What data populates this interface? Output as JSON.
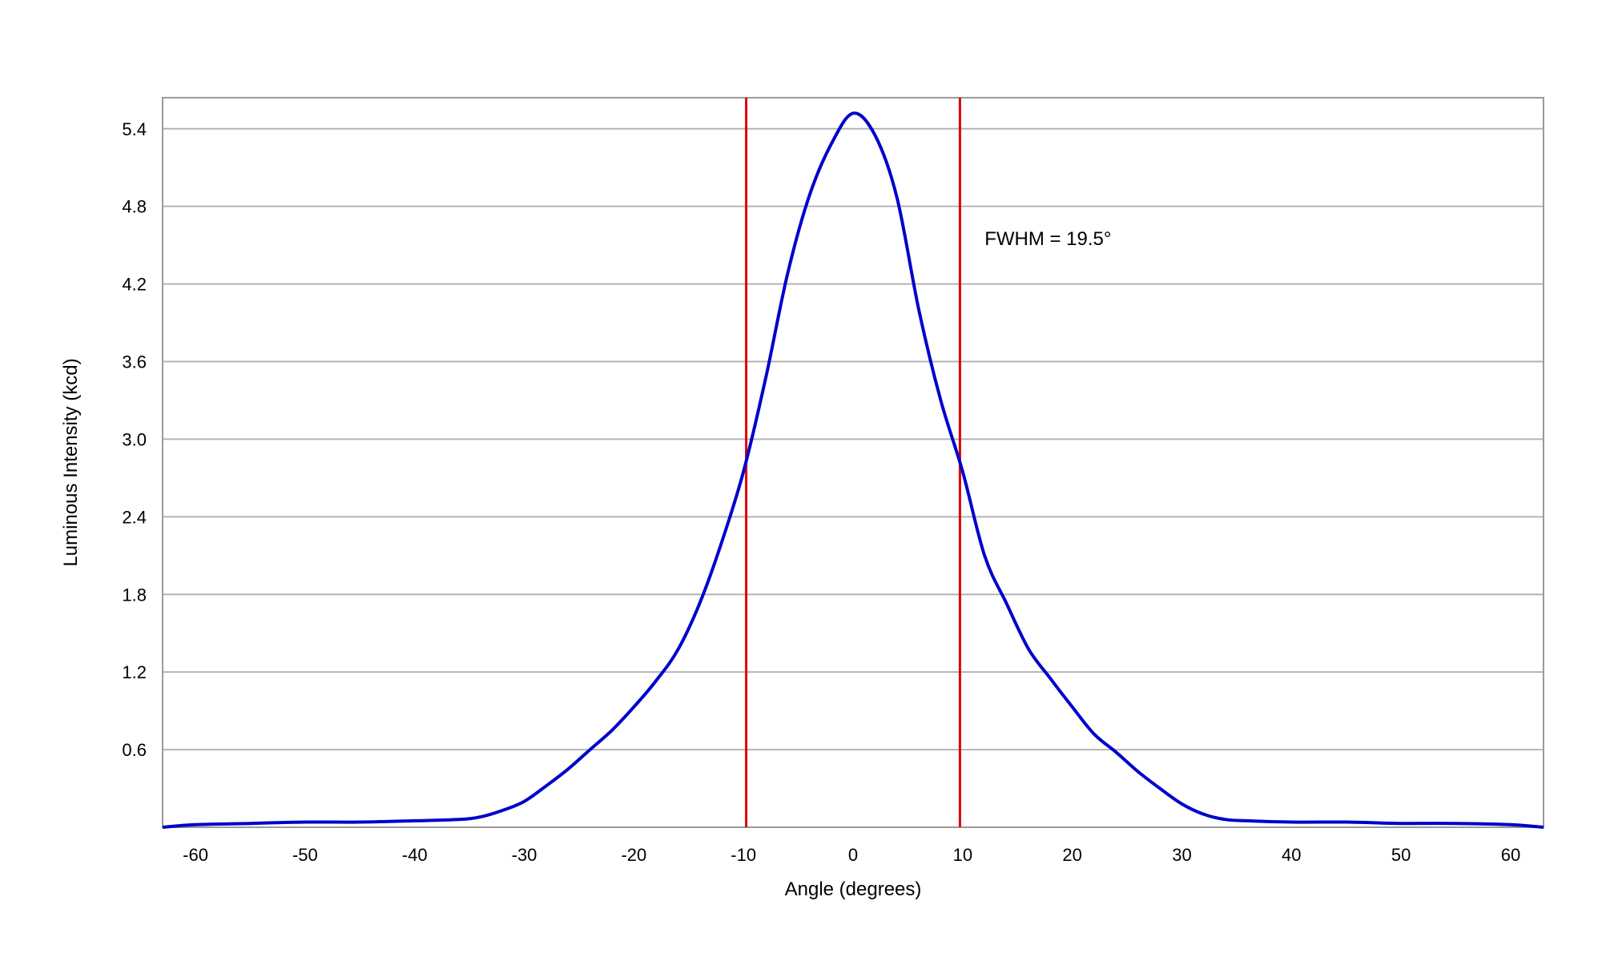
{
  "chart_data": {
    "type": "line",
    "title": "",
    "xlabel": "Angle (degrees)",
    "ylabel": "Luminous Intensity (kcd)",
    "xlim": [
      -63,
      63
    ],
    "ylim": [
      0,
      5.64
    ],
    "xticks": [
      -60,
      -50,
      -40,
      -30,
      -20,
      -10,
      0,
      10,
      20,
      30,
      40,
      50,
      60
    ],
    "xtick_labels": [
      "-60",
      "-50",
      "-40",
      "-30",
      "-20",
      "-10",
      "0",
      "10",
      "20",
      "30",
      "40",
      "50",
      "60"
    ],
    "yticks": [
      0.6,
      1.2,
      1.8,
      2.4,
      3.0,
      3.6,
      4.2,
      4.8,
      5.4
    ],
    "ytick_labels": [
      "0.6",
      "1.2",
      "1.8",
      "2.4",
      "3.0",
      "3.6",
      "4.2",
      "4.8",
      "5.4"
    ],
    "grid": {
      "horizontal": true,
      "vertical": false
    },
    "series": [
      {
        "color": "#0000cc",
        "x": [
          -63,
          -60,
          -55,
          -50,
          -45,
          -40,
          -36,
          -34,
          -32,
          -30,
          -28,
          -26,
          -24,
          -22,
          -20,
          -18,
          -16,
          -14,
          -12,
          -10,
          -8,
          -6,
          -4,
          -2,
          0,
          2,
          4,
          6,
          8,
          10,
          12,
          14,
          16,
          18,
          20,
          22,
          24,
          26,
          28,
          30,
          32,
          34,
          36,
          40,
          45,
          50,
          55,
          60,
          63
        ],
        "y": [
          0.0,
          0.02,
          0.03,
          0.04,
          0.04,
          0.05,
          0.06,
          0.08,
          0.13,
          0.2,
          0.32,
          0.45,
          0.6,
          0.75,
          0.93,
          1.13,
          1.37,
          1.73,
          2.2,
          2.75,
          3.46,
          4.27,
          4.88,
          5.28,
          5.52,
          5.35,
          4.87,
          4.0,
          3.3,
          2.75,
          2.1,
          1.73,
          1.38,
          1.15,
          0.93,
          0.72,
          0.58,
          0.43,
          0.3,
          0.18,
          0.1,
          0.06,
          0.05,
          0.04,
          0.04,
          0.03,
          0.03,
          0.02,
          0.0
        ]
      }
    ],
    "vlines": [
      {
        "x": -9.75,
        "color": "#dd0000"
      },
      {
        "x": 9.75,
        "color": "#dd0000"
      }
    ],
    "annotations": [
      {
        "text": "FWHM = 19.5°",
        "x": 12,
        "y": 4.5
      }
    ]
  }
}
